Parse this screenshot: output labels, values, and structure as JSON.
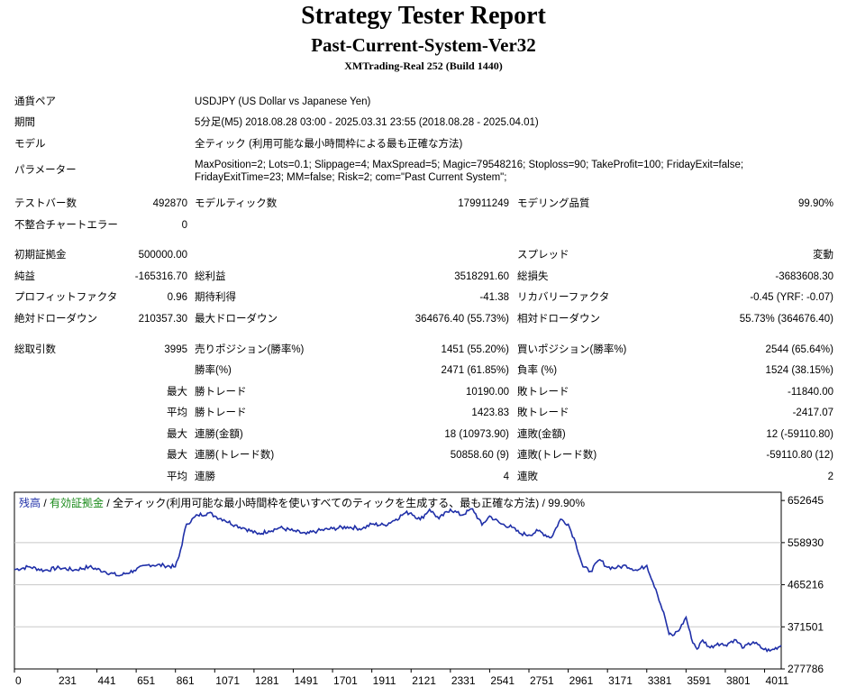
{
  "header": {
    "title": "Strategy Tester Report",
    "subtitle": "Past-Current-System-Ver32",
    "server": "XMTrading-Real 252 (Build 1440)"
  },
  "info": {
    "symbol_label": "通貨ペア",
    "symbol_value": "USDJPY (US Dollar vs Japanese Yen)",
    "period_label": "期間",
    "period_value": "5分足(M5) 2018.08.28 03:00 - 2025.03.31 23:55 (2018.08.28 - 2025.04.01)",
    "model_label": "モデル",
    "model_value": "全ティック (利用可能な最小時間枠による最も正確な方法)",
    "params_label": "パラメーター",
    "params_value": "MaxPosition=2; Lots=0.1; Slippage=4; MaxSpread=5; Magic=79548216; Stoploss=90; TakeProfit=100; FridayExit=false; FridayExitTime=23; MM=false; Risk=2; com=\"Past Current System\";"
  },
  "stats": {
    "bars_label": "テストバー数",
    "bars_value": "492870",
    "ticks_label": "モデルティック数",
    "ticks_value": "179911249",
    "quality_label": "モデリング品質",
    "quality_value": "99.90%",
    "mismatch_label": "不整合チャートエラー",
    "mismatch_value": "0",
    "deposit_label": "初期証拠金",
    "deposit_value": "500000.00",
    "spread_label": "スプレッド",
    "spread_value": "変動",
    "net_label": "純益",
    "net_value": "-165316.70",
    "gross_profit_label": "総利益",
    "gross_profit_value": "3518291.60",
    "gross_loss_label": "総損失",
    "gross_loss_value": "-3683608.30",
    "pf_label": "プロフィットファクタ",
    "pf_value": "0.96",
    "payoff_label": "期待利得",
    "payoff_value": "-41.38",
    "rf_label": "リカバリーファクタ",
    "rf_value": "-0.45 (YRF: -0.07)",
    "abs_dd_label": "絶対ドローダウン",
    "abs_dd_value": "210357.30",
    "max_dd_label": "最大ドローダウン",
    "max_dd_value": "364676.40 (55.73%)",
    "rel_dd_label": "相対ドローダウン",
    "rel_dd_value": "55.73% (364676.40)",
    "trades_label": "総取引数",
    "trades_value": "3995",
    "short_label": "売りポジション(勝率%)",
    "short_value": "1451 (55.20%)",
    "long_label": "買いポジション(勝率%)",
    "long_value": "2544 (65.64%)",
    "win_rate_label": "勝率(%)",
    "win_rate_value": "2471 (61.85%)",
    "loss_rate_label": "負率 (%)",
    "loss_rate_value": "1524 (38.15%)",
    "max_word": "最大",
    "avg_word": "平均",
    "largest_win_label": "勝トレード",
    "largest_win_value": "10190.00",
    "largest_loss_label": "敗トレード",
    "largest_loss_value": "-11840.00",
    "avg_win_label": "勝トレード",
    "avg_win_value": "1423.83",
    "avg_loss_label": "敗トレード",
    "avg_loss_value": "-2417.07",
    "max_consec_win_label": "連勝(金額)",
    "max_consec_win_value": "18 (10973.90)",
    "max_consec_loss_label": "連敗(金額)",
    "max_consec_loss_value": "12 (-59110.80)",
    "max_consec_profit_label": "連勝(トレード数)",
    "max_consec_profit_value": "50858.60 (9)",
    "max_consec_lossamt_label": "連敗(トレード数)",
    "max_consec_lossamt_value": "-59110.80 (12)",
    "avg_consec_win_label": "連勝",
    "avg_consec_win_value": "4",
    "avg_consec_loss_label": "連敗",
    "avg_consec_loss_value": "2"
  },
  "chart_data": {
    "type": "line",
    "legend": {
      "balance": "残高",
      "sep1": " / ",
      "equity": "有効証拠金",
      "sep2": " / ",
      "model": "全ティック(利用可能な最小時間枠を使いすべてのティックを生成する、最も正確な方法) / 99.90%"
    },
    "colors": {
      "balance": "#1f2fa8",
      "equity": "#1a8a1a",
      "grid": "#c8c8c8"
    },
    "y_ticks": [
      "652645",
      "558930",
      "465216",
      "371501",
      "277786"
    ],
    "x_ticks": [
      "0",
      "231",
      "441",
      "651",
      "861",
      "1071",
      "1281",
      "1491",
      "1701",
      "1911",
      "2121",
      "2331",
      "2541",
      "2751",
      "2961",
      "3171",
      "3381",
      "3591",
      "3801",
      "4011"
    ],
    "xlim": [
      0,
      4100
    ],
    "ylim": [
      277786,
      671000
    ],
    "series": [
      {
        "x": [
          0,
          80,
          160,
          240,
          320,
          400,
          480,
          560,
          640,
          720,
          800,
          860,
          880,
          920,
          980,
          1040,
          1071,
          1120,
          1180,
          1230,
          1300,
          1360,
          1420,
          1491,
          1560,
          1620,
          1701,
          1780,
          1860,
          1911,
          1980,
          2040,
          2090,
          2121,
          2170,
          2220,
          2270,
          2331,
          2390,
          2450,
          2500,
          2541,
          2600,
          2660,
          2700,
          2751,
          2800,
          2870,
          2920,
          2961,
          3000,
          3040,
          3080,
          3130,
          3171,
          3220,
          3270,
          3330,
          3381,
          3430,
          3480,
          3500,
          3520,
          3560,
          3591,
          3620,
          3650,
          3680,
          3720,
          3760,
          3801,
          3850,
          3900,
          3950,
          4000,
          4040,
          4100
        ],
        "y": [
          499000,
          505000,
          497000,
          503000,
          498000,
          505000,
          495000,
          485000,
          497000,
          510000,
          508000,
          505000,
          528000,
          600000,
          620000,
          625000,
          618000,
          610000,
          598000,
          591000,
          578000,
          585000,
          592000,
          585000,
          578000,
          585000,
          590000,
          594000,
          590000,
          600000,
          598000,
          611000,
          625000,
          625000,
          610000,
          633000,
          612000,
          633000,
          620000,
          634000,
          598000,
          618000,
          601000,
          593000,
          580000,
          576000,
          585000,
          570000,
          611000,
          600000,
          560000,
          505000,
          495000,
          521000,
          504000,
          503000,
          508000,
          497000,
          508000,
          455000,
          390000,
          355000,
          352000,
          368000,
          393000,
          345000,
          322000,
          342000,
          325000,
          335000,
          331000,
          343000,
          325000,
          338000,
          323000,
          318000,
          330000
        ]
      }
    ]
  }
}
